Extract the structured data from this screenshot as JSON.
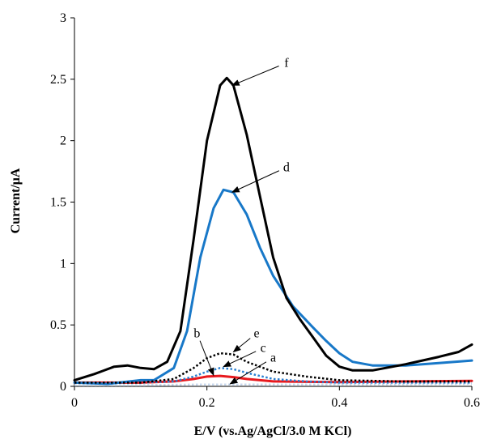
{
  "chart_data": {
    "type": "line",
    "title": "",
    "xlabel": "E/V (vs.Ag/AgCl/3.0 M KCl)",
    "ylabel": "Current/μA",
    "xlim": [
      0,
      0.6
    ],
    "ylim": [
      0,
      3
    ],
    "x_ticks": [
      "0",
      "0.2",
      "0.4",
      "0.6"
    ],
    "y_ticks": [
      "0",
      "0.5",
      "1",
      "1.5",
      "2",
      "2.5",
      "3"
    ],
    "grid": false,
    "series": [
      {
        "name": "a",
        "color": "#c8d8ee",
        "style": "dotted",
        "points": [
          [
            0,
            0.01
          ],
          [
            0.1,
            0.01
          ],
          [
            0.2,
            0.015
          ],
          [
            0.3,
            0.015
          ],
          [
            0.4,
            0.015
          ],
          [
            0.5,
            0.015
          ],
          [
            0.6,
            0.02
          ]
        ]
      },
      {
        "name": "b",
        "color": "#e8191e",
        "style": "solid",
        "points": [
          [
            0,
            0.03
          ],
          [
            0.1,
            0.03
          ],
          [
            0.15,
            0.04
          ],
          [
            0.18,
            0.06
          ],
          [
            0.2,
            0.08
          ],
          [
            0.22,
            0.085
          ],
          [
            0.24,
            0.075
          ],
          [
            0.26,
            0.06
          ],
          [
            0.3,
            0.04
          ],
          [
            0.4,
            0.035
          ],
          [
            0.5,
            0.04
          ],
          [
            0.6,
            0.045
          ]
        ]
      },
      {
        "name": "c",
        "color": "#2a7fd0",
        "style": "dotted",
        "points": [
          [
            0,
            0.03
          ],
          [
            0.1,
            0.03
          ],
          [
            0.15,
            0.04
          ],
          [
            0.18,
            0.08
          ],
          [
            0.2,
            0.12
          ],
          [
            0.22,
            0.15
          ],
          [
            0.24,
            0.14
          ],
          [
            0.26,
            0.11
          ],
          [
            0.3,
            0.06
          ],
          [
            0.35,
            0.04
          ],
          [
            0.4,
            0.03
          ],
          [
            0.5,
            0.03
          ],
          [
            0.6,
            0.03
          ]
        ]
      },
      {
        "name": "d",
        "color": "#1878c8",
        "style": "solid",
        "points": [
          [
            0,
            0.03
          ],
          [
            0.05,
            0.02
          ],
          [
            0.1,
            0.05
          ],
          [
            0.12,
            0.05
          ],
          [
            0.15,
            0.15
          ],
          [
            0.17,
            0.45
          ],
          [
            0.19,
            1.05
          ],
          [
            0.21,
            1.45
          ],
          [
            0.225,
            1.6
          ],
          [
            0.24,
            1.58
          ],
          [
            0.26,
            1.4
          ],
          [
            0.28,
            1.13
          ],
          [
            0.3,
            0.9
          ],
          [
            0.33,
            0.65
          ],
          [
            0.36,
            0.48
          ],
          [
            0.38,
            0.37
          ],
          [
            0.4,
            0.27
          ],
          [
            0.42,
            0.2
          ],
          [
            0.45,
            0.17
          ],
          [
            0.5,
            0.17
          ],
          [
            0.55,
            0.19
          ],
          [
            0.6,
            0.21
          ]
        ]
      },
      {
        "name": "e",
        "color": "#000000",
        "style": "dotted",
        "points": [
          [
            0,
            0.03
          ],
          [
            0.1,
            0.03
          ],
          [
            0.15,
            0.06
          ],
          [
            0.18,
            0.15
          ],
          [
            0.2,
            0.23
          ],
          [
            0.22,
            0.27
          ],
          [
            0.24,
            0.26
          ],
          [
            0.26,
            0.2
          ],
          [
            0.3,
            0.12
          ],
          [
            0.35,
            0.08
          ],
          [
            0.4,
            0.05
          ],
          [
            0.5,
            0.04
          ],
          [
            0.6,
            0.04
          ]
        ]
      },
      {
        "name": "f",
        "color": "#000000",
        "style": "solid",
        "points": [
          [
            0,
            0.05
          ],
          [
            0.03,
            0.1
          ],
          [
            0.06,
            0.16
          ],
          [
            0.08,
            0.17
          ],
          [
            0.1,
            0.15
          ],
          [
            0.12,
            0.14
          ],
          [
            0.14,
            0.2
          ],
          [
            0.16,
            0.45
          ],
          [
            0.18,
            1.2
          ],
          [
            0.2,
            2.0
          ],
          [
            0.22,
            2.45
          ],
          [
            0.23,
            2.51
          ],
          [
            0.24,
            2.45
          ],
          [
            0.26,
            2.05
          ],
          [
            0.28,
            1.55
          ],
          [
            0.3,
            1.05
          ],
          [
            0.32,
            0.72
          ],
          [
            0.34,
            0.55
          ],
          [
            0.36,
            0.4
          ],
          [
            0.38,
            0.25
          ],
          [
            0.4,
            0.16
          ],
          [
            0.42,
            0.13
          ],
          [
            0.45,
            0.13
          ],
          [
            0.5,
            0.18
          ],
          [
            0.55,
            0.24
          ],
          [
            0.58,
            0.28
          ],
          [
            0.6,
            0.34
          ]
        ]
      }
    ],
    "annotations": [
      {
        "label": "f",
        "text_at": [
          0.32,
          2.6
        ],
        "arrow_to": [
          0.238,
          2.45
        ]
      },
      {
        "label": "d",
        "text_at": [
          0.32,
          1.75
        ],
        "arrow_to": [
          0.238,
          1.58
        ]
      },
      {
        "label": "e",
        "text_at": [
          0.275,
          0.4
        ],
        "arrow_to": [
          0.24,
          0.28
        ]
      },
      {
        "label": "c",
        "text_at": [
          0.285,
          0.28
        ],
        "arrow_to": [
          0.225,
          0.16
        ]
      },
      {
        "label": "b",
        "text_at": [
          0.185,
          0.4
        ],
        "arrow_to": [
          0.21,
          0.09
        ]
      },
      {
        "label": "a",
        "text_at": [
          0.3,
          0.2
        ],
        "arrow_to": [
          0.235,
          0.02
        ]
      }
    ]
  }
}
